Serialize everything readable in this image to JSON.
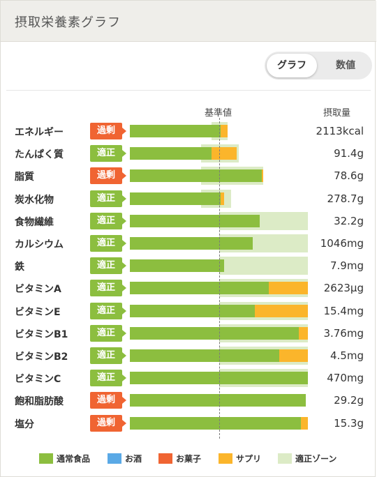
{
  "header": {
    "title": "摂取栄養素グラフ"
  },
  "view_toggle": {
    "graph_label": "グラフ",
    "number_label": "数値",
    "selected": "グラフ"
  },
  "columns": {
    "reference_label": "基準値",
    "intake_label": "摂取量"
  },
  "colors": {
    "normal": "#8cbe3f",
    "alcohol": "#5aa9e6",
    "sweets": "#f06432",
    "supplement": "#fbb52b",
    "proper_zone": "#dcebc6",
    "badge_ok": "#8cbe3f",
    "badge_over": "#f06432"
  },
  "chart_data": {
    "type": "bar",
    "stacked": true,
    "reference_fraction": 0.5,
    "categories": [
      "エネルギー",
      "たんぱく質",
      "脂質",
      "炭水化物",
      "食物繊維",
      "カルシウム",
      "鉄",
      "ビタミンA",
      "ビタミンE",
      "ビタミンB1",
      "ビタミンB2",
      "ビタミンC",
      "飽和脂肪酸",
      "塩分"
    ],
    "status": [
      "過剰",
      "適正",
      "過剰",
      "適正",
      "適正",
      "適正",
      "適正",
      "適正",
      "適正",
      "適正",
      "適正",
      "適正",
      "過剰",
      "過剰"
    ],
    "status_type": [
      "over",
      "ok",
      "over",
      "ok",
      "ok",
      "ok",
      "ok",
      "ok",
      "ok",
      "ok",
      "ok",
      "ok",
      "over",
      "over"
    ],
    "intake": [
      "2113kcal",
      "91.4g",
      "78.6g",
      "278.7g",
      "32.2g",
      "1046mg",
      "7.9mg",
      "2623µg",
      "15.4mg",
      "3.76mg",
      "4.5mg",
      "470mg",
      "29.2g",
      "15.3g"
    ],
    "proper_zone": [
      [
        0.46,
        0.55
      ],
      [
        0.4,
        0.61
      ],
      [
        0.4,
        0.75
      ],
      [
        0.4,
        0.57
      ],
      [
        0.5,
        1.0
      ],
      [
        0.5,
        1.0
      ],
      [
        0.5,
        1.0
      ],
      [
        0.5,
        1.0
      ],
      [
        0.5,
        1.0
      ],
      [
        0.5,
        1.0
      ],
      [
        0.5,
        1.0
      ],
      [
        0.5,
        1.0
      ],
      [
        0.0,
        0.0
      ],
      [
        0.0,
        0.0
      ]
    ],
    "series": [
      {
        "name": "通常食品",
        "values": [
          0.51,
          0.46,
          0.74,
          0.51,
          0.73,
          0.69,
          0.53,
          0.78,
          0.7,
          0.95,
          0.84,
          1.0,
          0.99,
          0.96
        ]
      },
      {
        "name": "お酒",
        "values": [
          0,
          0,
          0,
          0,
          0,
          0,
          0,
          0,
          0,
          0,
          0,
          0,
          0,
          0
        ]
      },
      {
        "name": "お菓子",
        "values": [
          0,
          0,
          0,
          0,
          0,
          0,
          0,
          0,
          0,
          0,
          0,
          0,
          0,
          0
        ]
      },
      {
        "name": "サプリ",
        "values": [
          0.04,
          0.14,
          0.01,
          0.02,
          0,
          0,
          0,
          0.22,
          0.3,
          0.05,
          0.16,
          0,
          0,
          0.04
        ]
      }
    ]
  },
  "legend": [
    {
      "label": "通常食品",
      "color": "#8cbe3f"
    },
    {
      "label": "お酒",
      "color": "#5aa9e6"
    },
    {
      "label": "お菓子",
      "color": "#f06432"
    },
    {
      "label": "サプリ",
      "color": "#fbb52b"
    },
    {
      "label": "適正ゾーン",
      "color": "#dcebc6"
    }
  ]
}
